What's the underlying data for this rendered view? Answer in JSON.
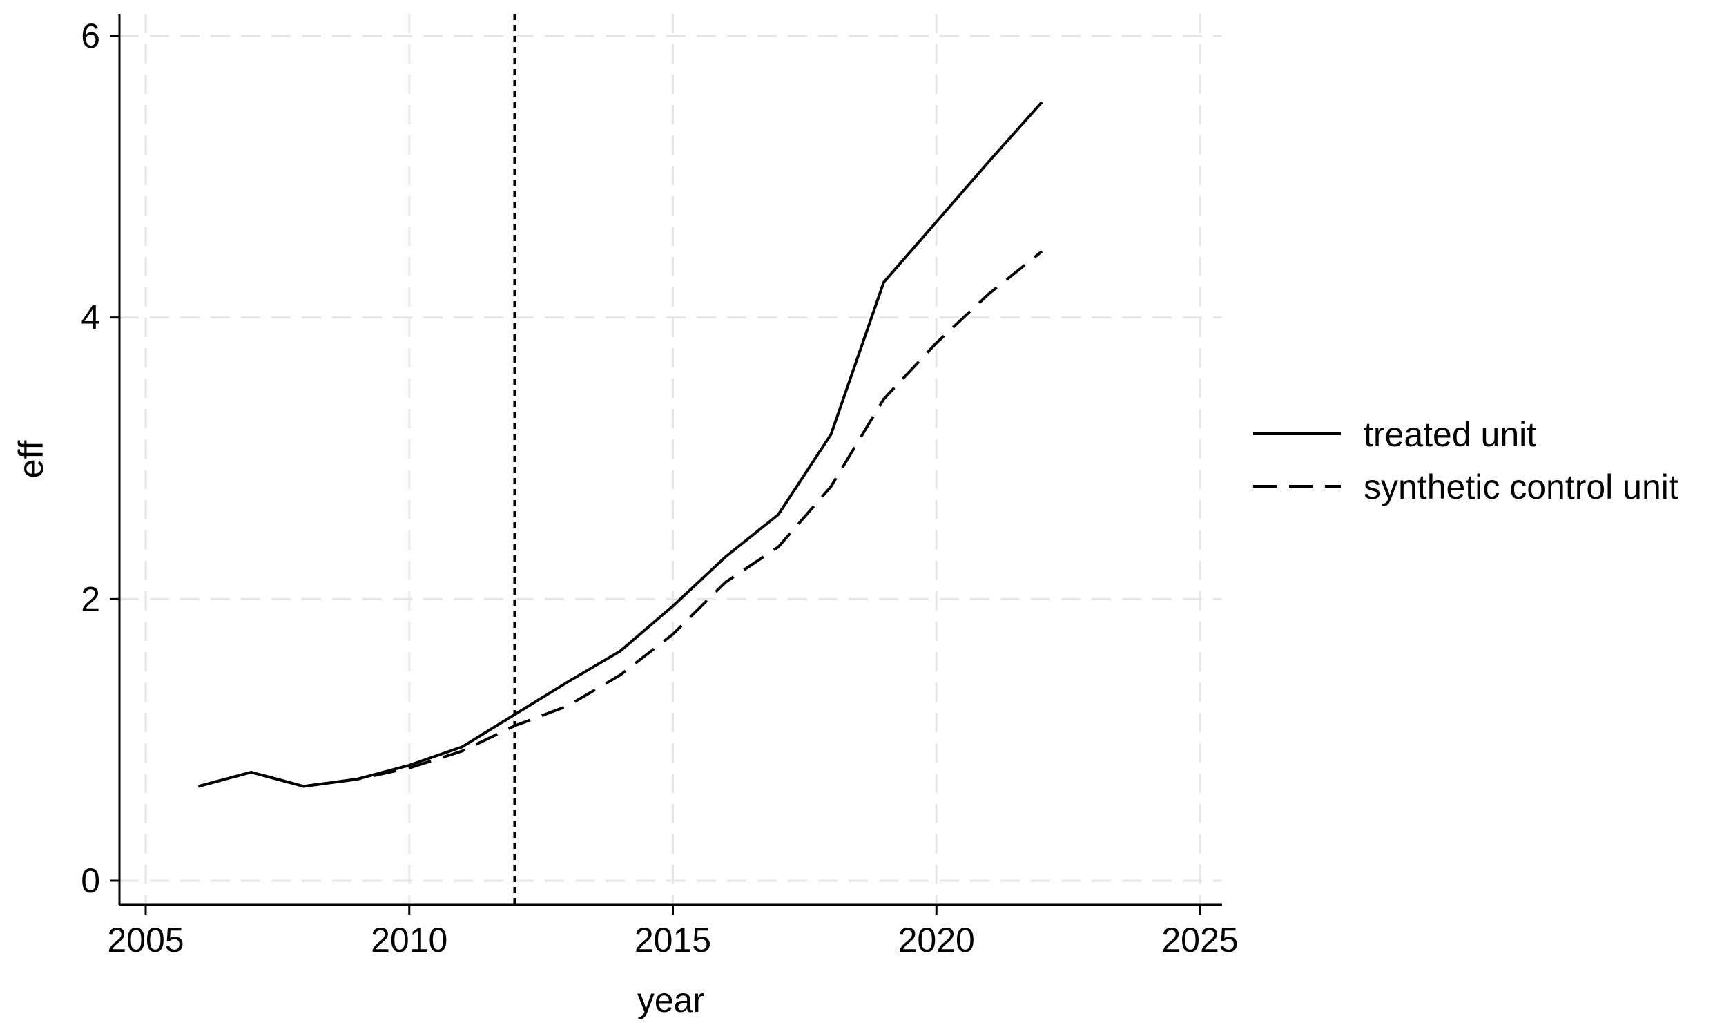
{
  "chart_data": {
    "type": "line",
    "xlabel": "year",
    "ylabel": "eff",
    "xlim": [
      2005,
      2025
    ],
    "ylim": [
      0,
      6
    ],
    "xticks": [
      2005,
      2010,
      2015,
      2020,
      2025
    ],
    "yticks": [
      0,
      2,
      4,
      6
    ],
    "grid": true,
    "vline": 2012,
    "legend_position": "right",
    "x": [
      2006,
      2007,
      2008,
      2009,
      2010,
      2011,
      2012,
      2013,
      2014,
      2015,
      2016,
      2017,
      2018,
      2019,
      2020,
      2021,
      2022
    ],
    "series": [
      {
        "name": "treated unit",
        "style": "solid",
        "values": [
          0.67,
          0.77,
          0.67,
          0.72,
          0.82,
          0.95,
          1.18,
          1.41,
          1.63,
          1.95,
          2.3,
          2.6,
          3.17,
          4.25,
          4.68,
          5.11,
          5.53
        ]
      },
      {
        "name": "synthetic control unit",
        "style": "dashed",
        "values": [
          0.67,
          0.77,
          0.67,
          0.72,
          0.8,
          0.92,
          1.1,
          1.24,
          1.46,
          1.75,
          2.12,
          2.37,
          2.8,
          3.42,
          3.82,
          4.17,
          4.47
        ]
      }
    ]
  }
}
